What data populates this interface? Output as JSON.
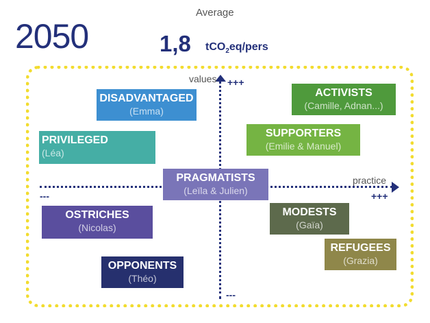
{
  "header": {
    "year": "2050",
    "average_label": "Average",
    "average_value": "1,8",
    "unit_prefix": "tCO",
    "unit_sub": "2",
    "unit_suffix": "eq/pers"
  },
  "axes": {
    "vertical_label": "values",
    "vertical_plus": "+++",
    "vertical_minus": "---",
    "horizontal_label": "practice",
    "horizontal_plus": "+++",
    "horizontal_minus": "---"
  },
  "groups": [
    {
      "id": "disadvantaged",
      "name": "DISADVANTAGED",
      "people": "(Emma)",
      "color": "#3d8fd1"
    },
    {
      "id": "privileged",
      "name": "PRIVILEGED",
      "people": "(Léa)",
      "color": "#45aea5"
    },
    {
      "id": "activists",
      "name": "ACTIVISTS",
      "people": "(Camille, Adnan...)",
      "color": "#4f9a3c"
    },
    {
      "id": "supporters",
      "name": "SUPPORTERS",
      "people": "(Emilie & Manuel)",
      "color": "#75b443"
    },
    {
      "id": "pragmatists",
      "name": "PRAGMATISTS",
      "people": "(Leïla & Julien)",
      "color": "#7a75b8"
    },
    {
      "id": "ostriches",
      "name": "OSTRICHES",
      "people": "(Nicolas)",
      "color": "#5a4e9e"
    },
    {
      "id": "modests",
      "name": "MODESTS",
      "people": "(Gaïa)",
      "color": "#5d6a4c"
    },
    {
      "id": "refugees",
      "name": "REFUGEES",
      "people": "(Grazia)",
      "color": "#8f874a"
    },
    {
      "id": "opponents",
      "name": "OPPONENTS",
      "people": "(Théo)",
      "color": "#26306e"
    }
  ]
}
